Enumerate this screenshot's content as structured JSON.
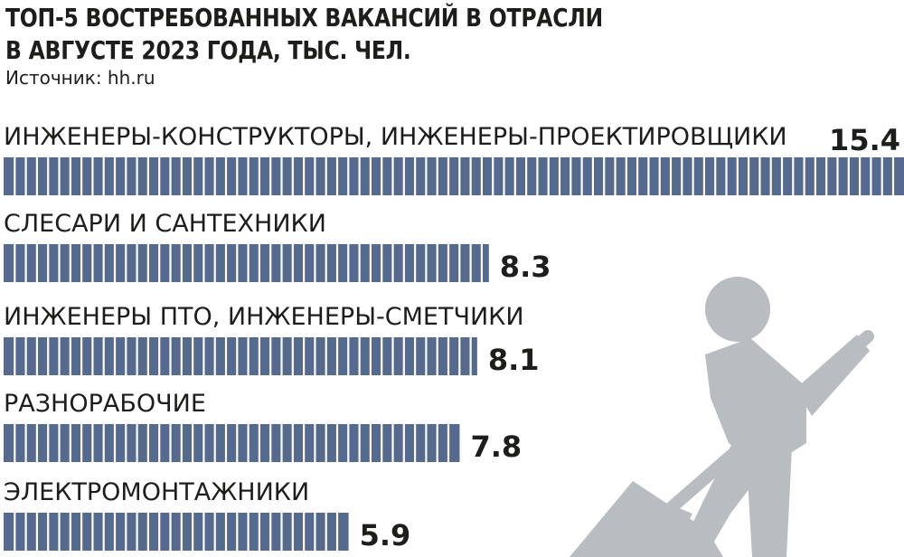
{
  "title_line1": "ТОП-5 ВОСТРЕБОВАННЫХ ВАКАНСИЙ В ОТРАСЛИ",
  "title_line2": "В АВГУСТЕ 2023 ГОДА, ТЫС. ЧЕЛ.",
  "source": "Источник: hh.ru",
  "colors": {
    "bar": "#56698f",
    "stripe": "#ffffff",
    "text": "#1d1d1b",
    "illustration": "#b9bcc1"
  },
  "illustration_icon": "worker-with-shovel-icon",
  "chart_data": {
    "type": "bar",
    "orientation": "horizontal",
    "categories": [
      "ИНЖЕНЕРЫ-КОНСТРУКТОРЫ, ИНЖЕНЕРЫ-ПРОЕКТИРОВЩИКИ",
      "СЛЕСАРИ И САНТЕХНИКИ",
      "ИНЖЕНЕРЫ ПТО, ИНЖЕНЕРЫ-СМЕТЧИКИ",
      "РАЗНОРАБОЧИЕ",
      "ЭЛЕКТРОМОНТАЖНИКИ"
    ],
    "values": [
      15.4,
      8.3,
      8.1,
      7.8,
      5.9
    ],
    "value_labels": [
      "15.4",
      "8.3",
      "8.1",
      "7.8",
      "5.9"
    ],
    "title": "ТОП-5 ВОСТРЕБОВАННЫХ ВАКАНСИЙ В ОТРАСЛИ В АВГУСТЕ 2023 ГОДА, ТЫС. ЧЕЛ.",
    "xlim": [
      0,
      15.4
    ],
    "grid": false,
    "legend": "none"
  }
}
